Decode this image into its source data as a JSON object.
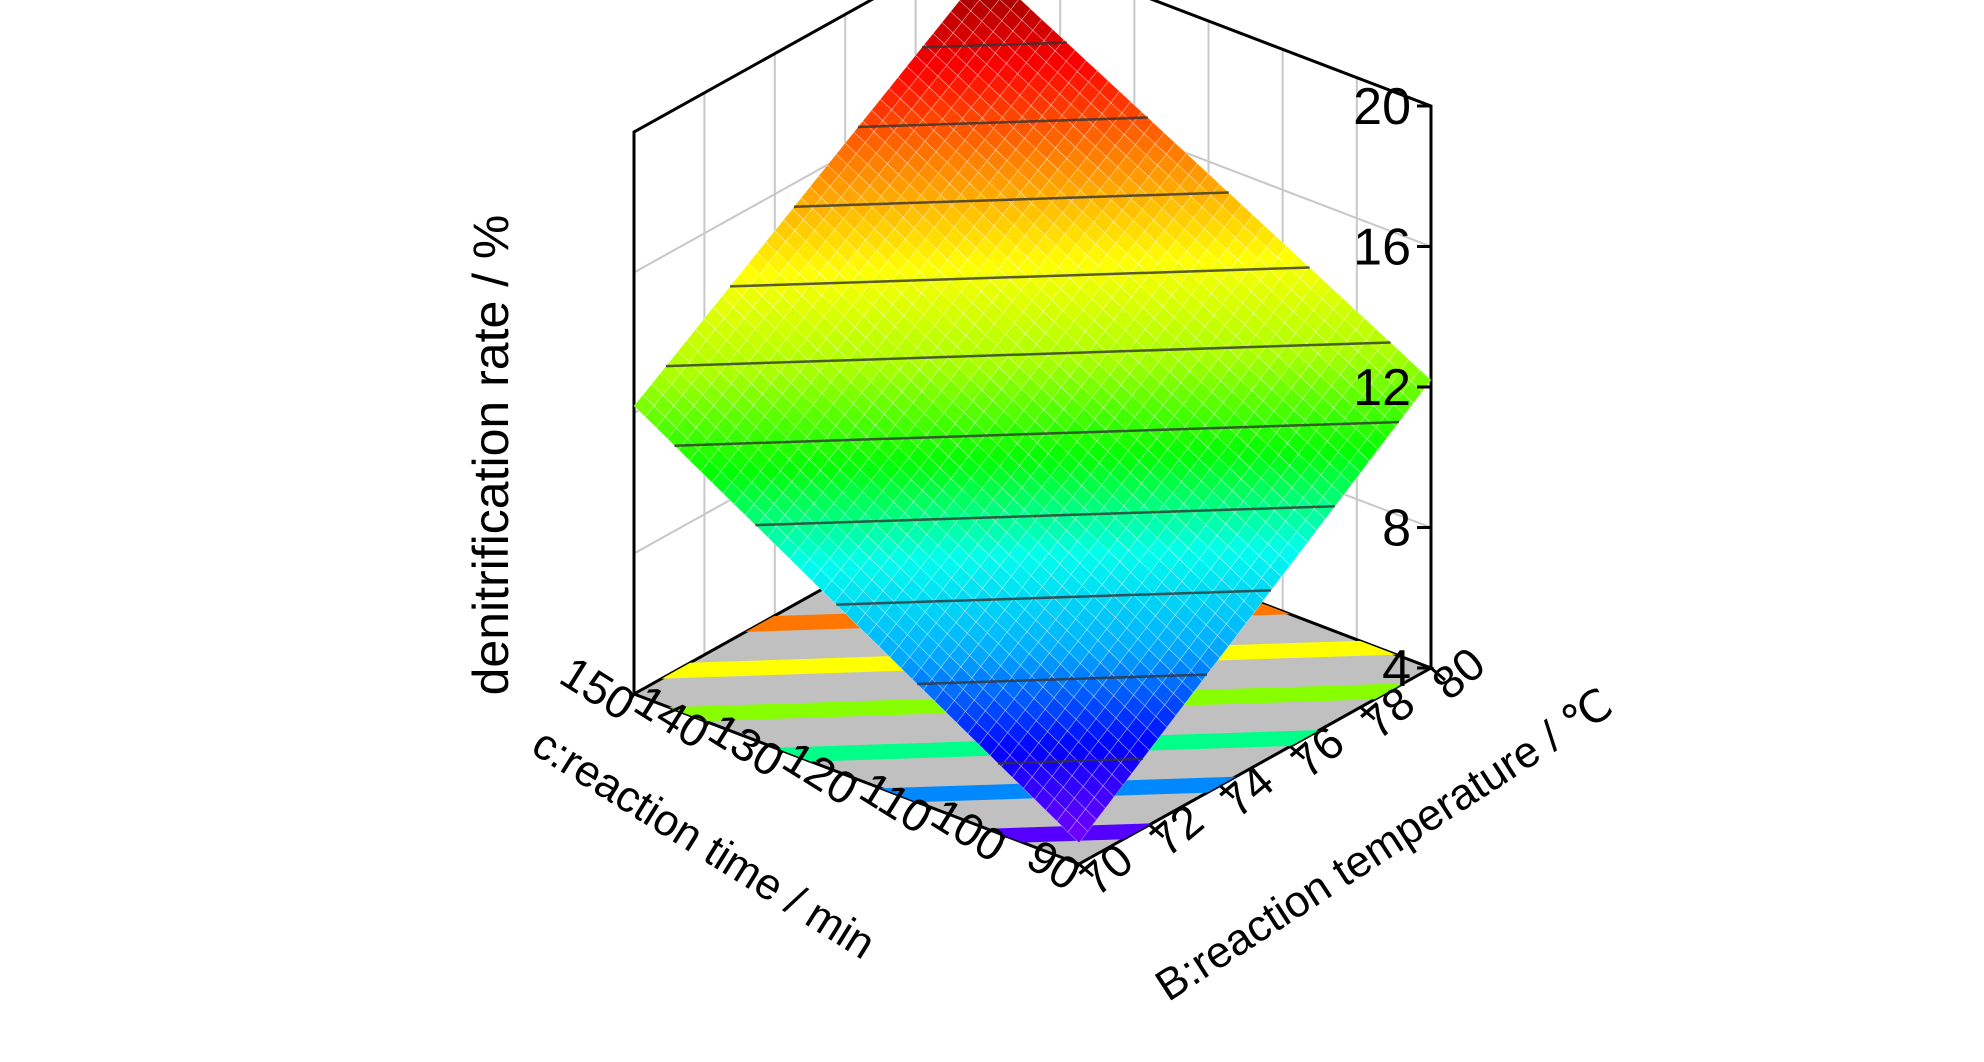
{
  "chart_data": {
    "type": "surface3d",
    "title": "",
    "z_axis": {
      "label": "denitrification rate / %",
      "range": [
        4,
        20
      ],
      "ticks": [
        "4",
        "8",
        "12",
        "16",
        "20"
      ]
    },
    "x_axis": {
      "label": "c:reaction time / min",
      "range": [
        90,
        150
      ],
      "ticks": [
        "90",
        "100",
        "110",
        "120",
        "130",
        "140",
        "150"
      ]
    },
    "y_axis": {
      "label": "B:reaction temperature / ℃",
      "range": [
        70,
        80
      ],
      "ticks": [
        "70",
        "72",
        "74",
        "76",
        "78",
        "80"
      ]
    },
    "grid": true,
    "surface": {
      "corners": [
        {
          "time": 90,
          "temperature": 70,
          "rate": 4.6
        },
        {
          "time": 150,
          "temperature": 70,
          "rate": 12.2
        },
        {
          "time": 90,
          "temperature": 80,
          "rate": 12.2
        },
        {
          "time": 150,
          "temperature": 80,
          "rate": 19.1
        }
      ],
      "colormap": [
        "#7a00ff",
        "#0000ff",
        "#00aaff",
        "#00ffee",
        "#00ff00",
        "#aaff00",
        "#ffff00",
        "#ff8800",
        "#ff0000",
        "#880000"
      ]
    },
    "floor_contours": {
      "colors": [
        "#5500ff",
        "#0088ff",
        "#00ff88",
        "#88ff00",
        "#ffff00",
        "#ff7700",
        "#ff0000",
        "#ff0000"
      ],
      "floor_color": "#c0c0c0"
    }
  }
}
